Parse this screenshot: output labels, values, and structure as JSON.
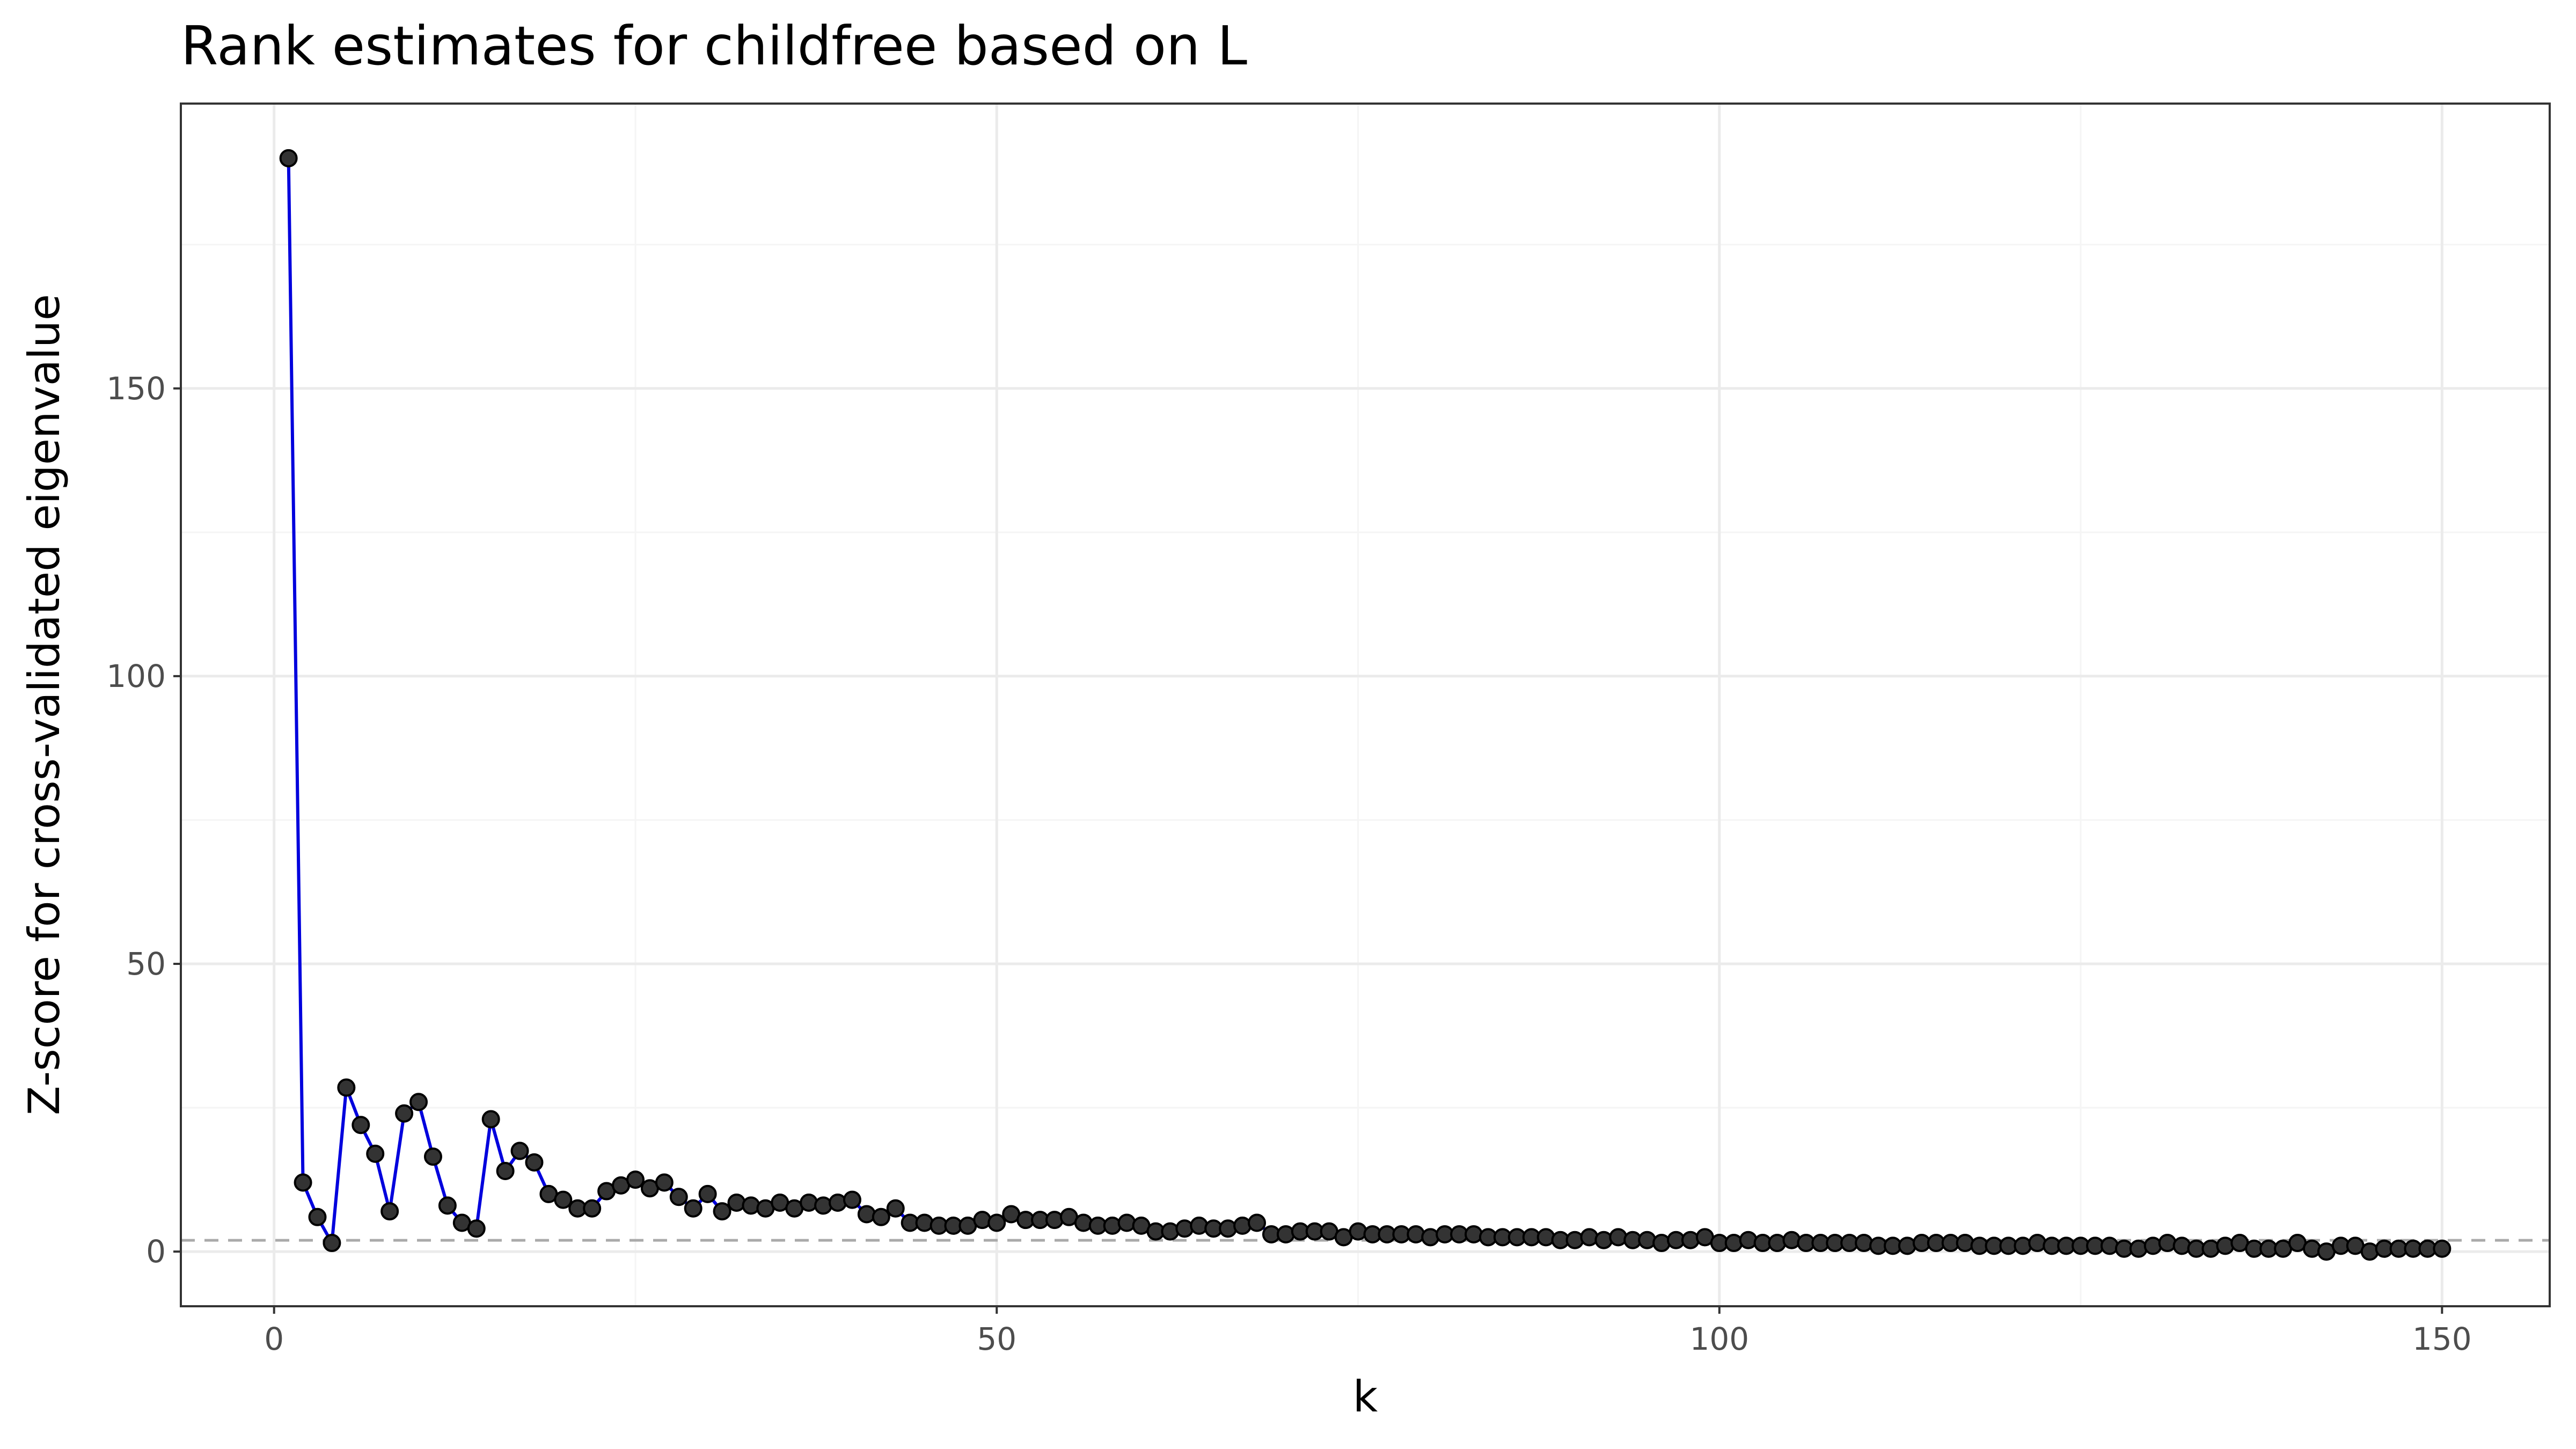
{
  "chart_data": {
    "type": "line",
    "title": "Rank estimates for childfree based on L",
    "x_label": "k",
    "y_label": "Z-score for cross-validated eigenvalue",
    "x": [
      1,
      2,
      3,
      4,
      5,
      6,
      7,
      8,
      9,
      10,
      11,
      12,
      13,
      14,
      15,
      16,
      17,
      18,
      19,
      20,
      21,
      22,
      23,
      24,
      25,
      26,
      27,
      28,
      29,
      30,
      31,
      32,
      33,
      34,
      35,
      36,
      37,
      38,
      39,
      40,
      41,
      42,
      43,
      44,
      45,
      46,
      47,
      48,
      49,
      50,
      51,
      52,
      53,
      54,
      55,
      56,
      57,
      58,
      59,
      60,
      61,
      62,
      63,
      64,
      65,
      66,
      67,
      68,
      69,
      70,
      71,
      72,
      73,
      74,
      75,
      76,
      77,
      78,
      79,
      80,
      81,
      82,
      83,
      84,
      85,
      86,
      87,
      88,
      89,
      90,
      91,
      92,
      93,
      94,
      95,
      96,
      97,
      98,
      99,
      100,
      101,
      102,
      103,
      104,
      105,
      106,
      107,
      108,
      109,
      110,
      111,
      112,
      113,
      114,
      115,
      116,
      117,
      118,
      119,
      120,
      121,
      122,
      123,
      124,
      125,
      126,
      127,
      128,
      129,
      130,
      131,
      132,
      133,
      134,
      135,
      136,
      137,
      138,
      139,
      140,
      141,
      142,
      143,
      144,
      145,
      146,
      147,
      148,
      149,
      150
    ],
    "values": [
      190,
      12,
      6,
      1.5,
      28.5,
      22,
      17,
      7,
      24,
      26,
      16.5,
      8,
      5,
      4,
      23,
      14,
      17.5,
      15.5,
      10,
      9,
      7.5,
      7.5,
      10.5,
      11.5,
      12.5,
      11,
      12,
      9.5,
      7.5,
      10,
      7,
      8.5,
      8,
      7.5,
      8.5,
      7.5,
      8.5,
      8,
      8.5,
      9,
      6.5,
      6,
      7.5,
      5,
      5,
      4.5,
      4.5,
      4.5,
      5.5,
      5,
      6.5,
      5.5,
      5.5,
      5.5,
      6,
      5,
      4.5,
      4.5,
      5,
      4.5,
      3.5,
      3.5,
      4,
      4.5,
      4,
      4,
      4.5,
      5,
      3,
      3,
      3.5,
      3.5,
      3.5,
      2.5,
      3.5,
      3,
      3,
      3,
      3,
      2.5,
      3,
      3,
      3,
      2.5,
      2.5,
      2.5,
      2.5,
      2.5,
      2,
      2,
      2.5,
      2,
      2.5,
      2,
      2,
      1.5,
      2,
      2,
      2.5,
      1.5,
      1.5,
      2,
      1.5,
      1.5,
      2,
      1.5,
      1.5,
      1.5,
      1.5,
      1.5,
      1,
      1,
      1,
      1.5,
      1.5,
      1.5,
      1.5,
      1,
      1,
      1,
      1,
      1.5,
      1,
      1,
      1,
      1,
      1,
      0.5,
      0.5,
      1,
      1.5,
      1,
      0.5,
      0.5,
      1,
      1.5,
      0.5,
      0.5,
      0.5,
      1.5,
      0.5,
      0,
      1,
      1,
      0,
      0.5,
      0.5,
      0.5,
      0.5,
      0.5
    ],
    "line_color": "#0000dd",
    "point_color": "#333333",
    "hline": 1.96,
    "xlim": [
      -6.45,
      157.45
    ],
    "ylim": [
      -9.5,
      199.5
    ],
    "xticks": [
      0,
      50,
      100,
      150
    ],
    "yticks": [
      0,
      50,
      100,
      150
    ],
    "x_minor_grid": [
      25,
      75,
      125
    ],
    "y_minor_grid": [
      25,
      75,
      125,
      175
    ],
    "grid": true
  }
}
